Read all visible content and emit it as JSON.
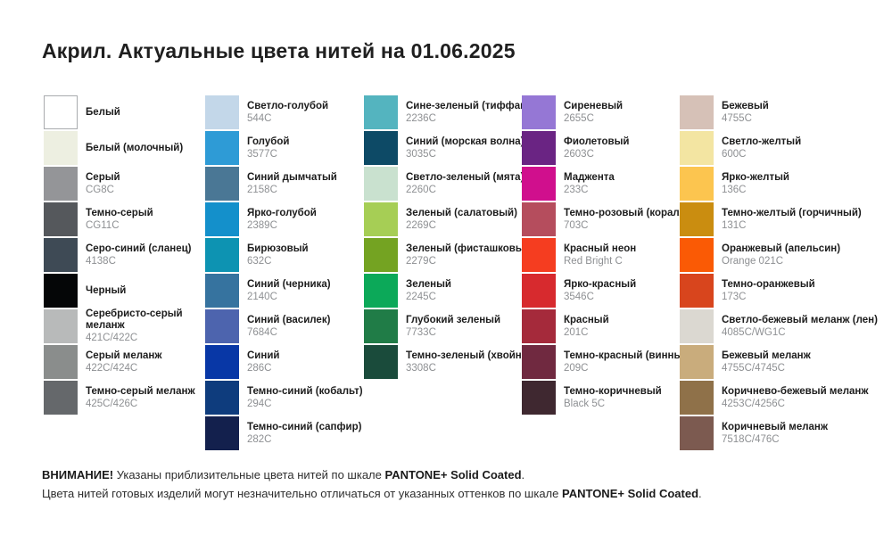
{
  "title": "Акрил. Актуальные цвета нитей на 01.06.2025",
  "columns": [
    {
      "id": "grays",
      "items": [
        {
          "name": "Белый",
          "code": "",
          "hex": "#FFFFFF",
          "bordered": true
        },
        {
          "name": "Белый (молочный)",
          "code": "",
          "hex": "#EDEFE1"
        },
        {
          "name": "Серый",
          "code": "CG8C",
          "hex": "#949598"
        },
        {
          "name": "Темно-серый",
          "code": "CG11C",
          "hex": "#55585C"
        },
        {
          "name": "Серо-синий (сланец)",
          "code": "4138C",
          "hex": "#3E4A55"
        },
        {
          "name": "Черный",
          "code": "",
          "hex": "#050607"
        },
        {
          "name": "Серебристо-серый меланж",
          "code": "421C/422C",
          "hex": "#B8BABA",
          "wrap": true
        },
        {
          "name": "Серый меланж",
          "code": "422C/424C",
          "hex": "#8A8D8C"
        },
        {
          "name": "Темно-серый меланж",
          "code": "425C/426C",
          "hex": "#65686B"
        }
      ]
    },
    {
      "id": "blues",
      "items": [
        {
          "name": "Светло-голубой",
          "code": "544C",
          "hex": "#C3D7E9"
        },
        {
          "name": "Голубой",
          "code": "3577C",
          "hex": "#2E9BD6"
        },
        {
          "name": "Синий дымчатый",
          "code": "2158C",
          "hex": "#4A7795"
        },
        {
          "name": "Ярко-голубой",
          "code": "2389C",
          "hex": "#1490CB"
        },
        {
          "name": "Бирюзовый",
          "code": "632C",
          "hex": "#0D93B2"
        },
        {
          "name": "Синий (черника)",
          "code": "2140C",
          "hex": "#36739F"
        },
        {
          "name": "Синий (василек)",
          "code": "7684C",
          "hex": "#4D64AE"
        },
        {
          "name": "Синий",
          "code": "286C",
          "hex": "#0837A6"
        },
        {
          "name": "Темно-синий (кобальт)",
          "code": "294C",
          "hex": "#0E3C7D"
        },
        {
          "name": "Темно-синий (сапфир)",
          "code": "282C",
          "hex": "#13204D"
        }
      ]
    },
    {
      "id": "greens",
      "items": [
        {
          "name": "Сине-зеленый (тиффани)",
          "code": "2236C",
          "hex": "#54B4BF"
        },
        {
          "name": "Синий (морская волна)",
          "code": "3035C",
          "hex": "#0D4A66"
        },
        {
          "name": "Светло-зеленый (мята)",
          "code": "2260C",
          "hex": "#C9E1CF"
        },
        {
          "name": "Зеленый (салатовый)",
          "code": "2269C",
          "hex": "#A6CE55"
        },
        {
          "name": "Зеленый (фисташковый)",
          "code": "2279C",
          "hex": "#74A322"
        },
        {
          "name": "Зеленый",
          "code": "2245C",
          "hex": "#0CA959"
        },
        {
          "name": "Глубокий зеленый",
          "code": "7733C",
          "hex": "#207C47"
        },
        {
          "name": "Темно-зеленый (хвойный)",
          "code": "3308C",
          "hex": "#1A4B3B"
        }
      ]
    },
    {
      "id": "purples-reds",
      "items": [
        {
          "name": "Сиреневый",
          "code": "2655C",
          "hex": "#9577D5"
        },
        {
          "name": "Фиолетовый",
          "code": "2603C",
          "hex": "#6A2483"
        },
        {
          "name": "Маджента",
          "code": "233C",
          "hex": "#D00F8D"
        },
        {
          "name": "Темно-розовый (коралл)",
          "code": "703C",
          "hex": "#B54D5D"
        },
        {
          "name": "Красный неон",
          "code": "Red Bright C",
          "hex": "#F53D20"
        },
        {
          "name": "Ярко-красный",
          "code": "3546C",
          "hex": "#D72A2E"
        },
        {
          "name": "Красный",
          "code": "201C",
          "hex": "#A52A3B"
        },
        {
          "name": "Темно-красный (винный)",
          "code": "209C",
          "hex": "#702940"
        },
        {
          "name": "Темно-коричневый",
          "code": "Black 5C",
          "hex": "#3F2830"
        }
      ]
    },
    {
      "id": "yellows-browns",
      "items": [
        {
          "name": "Бежевый",
          "code": "4755C",
          "hex": "#D6C1B7"
        },
        {
          "name": "Светло-желтый",
          "code": "600C",
          "hex": "#F3E5A2"
        },
        {
          "name": "Ярко-желтый",
          "code": "136C",
          "hex": "#FCC54F"
        },
        {
          "name": "Темно-желтый (горчичный)",
          "code": "131C",
          "hex": "#CA8D10"
        },
        {
          "name": "Оранжевый (апельсин)",
          "code": "Orange 021C",
          "hex": "#FA5A05"
        },
        {
          "name": "Темно-оранжевый",
          "code": "173C",
          "hex": "#D8451D"
        },
        {
          "name": "Светло-бежевый меланж (лен)",
          "code": "4085C/WG1C",
          "hex": "#DBD8D1"
        },
        {
          "name": "Бежевый меланж",
          "code": "4755C/4745C",
          "hex": "#C9AC7C"
        },
        {
          "name": "Коричнево-бежевый меланж",
          "code": "4253C/4256C",
          "hex": "#8F7149"
        },
        {
          "name": "Коричневый меланж",
          "code": "7518C/476C",
          "hex": "#7C5A50"
        }
      ]
    }
  ],
  "footer": {
    "warning": "ВНИМАНИЕ!",
    "line1_rest": " Указаны приблизительные цвета нитей по шкале ",
    "scale1": "PANTONE+ Solid Coated",
    "dot1": ".",
    "line2_rest": "Цвета нитей готовых изделий могут незначительно отличаться от указанных оттенков по шкале ",
    "scale2": "PANTONE+ Solid Coated",
    "dot2": "."
  }
}
